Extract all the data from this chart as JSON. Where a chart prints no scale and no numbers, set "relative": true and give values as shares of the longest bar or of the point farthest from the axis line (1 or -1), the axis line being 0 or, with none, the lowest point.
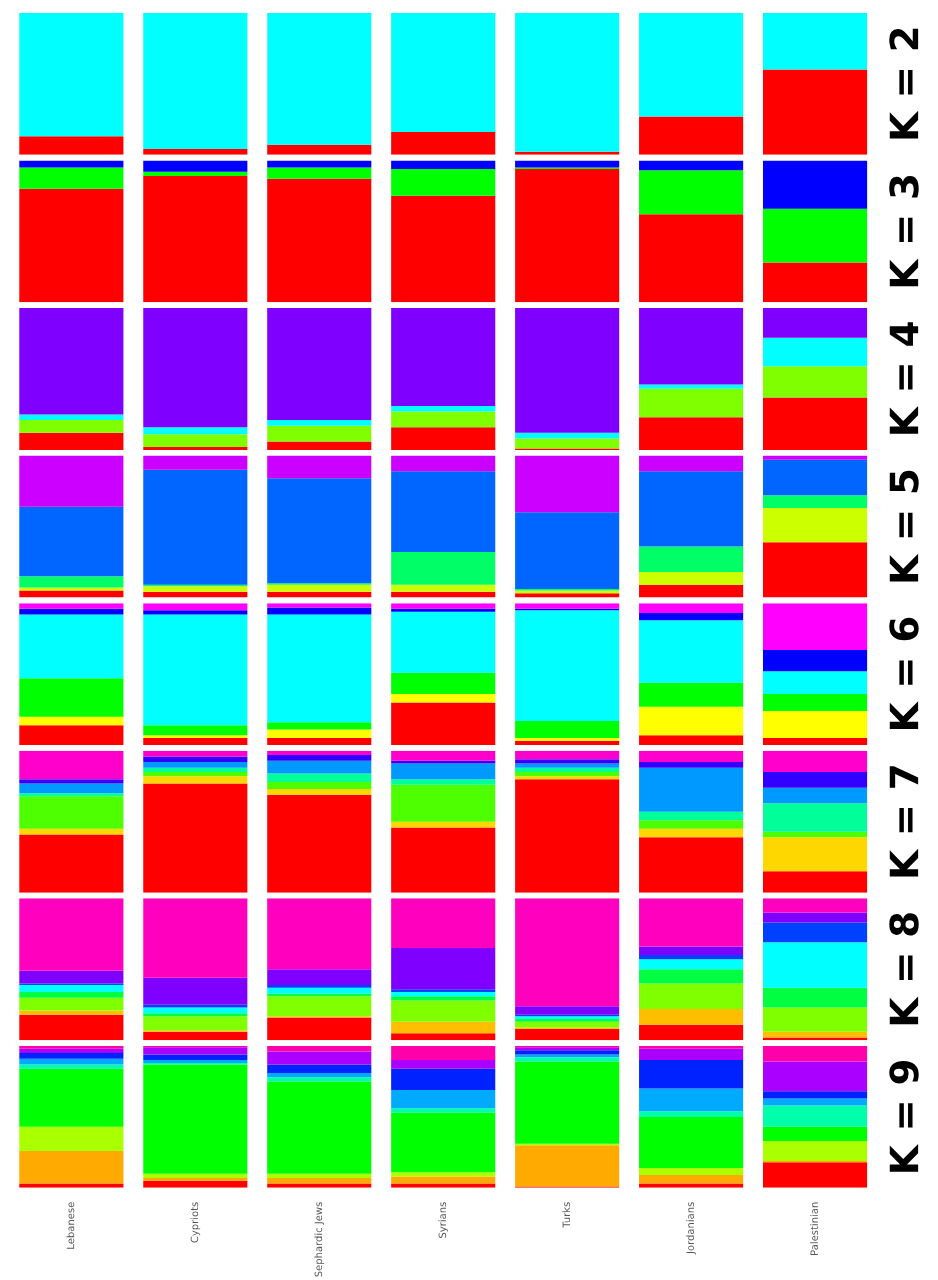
{
  "chart_data": [
    {
      "type": "bar",
      "title": "K = 2",
      "stacked": true,
      "relative": true,
      "tick_labels": false,
      "categories": [
        null,
        null,
        null,
        null,
        null,
        null,
        null
      ],
      "series": [
        {
          "color": "#ff0000",
          "values": [
            0.13,
            0.04,
            0.07,
            0.16,
            0.02,
            0.27,
            0.6
          ]
        },
        {
          "color": "#00ffff",
          "values": [
            0.87,
            0.96,
            0.93,
            0.84,
            0.98,
            0.73,
            0.4
          ]
        }
      ]
    },
    {
      "type": "bar",
      "title": "K = 3",
      "stacked": true,
      "relative": true,
      "tick_labels": false,
      "categories": [
        null,
        null,
        null,
        null,
        null,
        null,
        null
      ],
      "series": [
        {
          "color": "#ff0000",
          "values": [
            0.8,
            0.89,
            0.87,
            0.75,
            0.94,
            0.62,
            0.28
          ]
        },
        {
          "color": "#00ff00",
          "values": [
            0.15,
            0.03,
            0.08,
            0.19,
            0.01,
            0.31,
            0.38
          ]
        },
        {
          "color": "#0000ff",
          "values": [
            0.05,
            0.08,
            0.05,
            0.06,
            0.05,
            0.07,
            0.34
          ]
        }
      ]
    },
    {
      "type": "bar",
      "title": "K = 4",
      "stacked": true,
      "relative": true,
      "tick_labels": false,
      "categories": [
        null,
        null,
        null,
        null,
        null,
        null,
        null
      ],
      "series": [
        {
          "color": "#ff0000",
          "values": [
            0.12,
            0.02,
            0.06,
            0.16,
            0.01,
            0.23,
            0.37
          ]
        },
        {
          "color": "#80ff00",
          "values": [
            0.09,
            0.09,
            0.11,
            0.11,
            0.07,
            0.2,
            0.22
          ]
        },
        {
          "color": "#00ffff",
          "values": [
            0.04,
            0.05,
            0.04,
            0.04,
            0.04,
            0.03,
            0.2
          ]
        },
        {
          "color": "#8000ff",
          "values": [
            0.75,
            0.84,
            0.79,
            0.69,
            0.88,
            0.54,
            0.21
          ]
        }
      ]
    },
    {
      "type": "bar",
      "title": "K = 5",
      "stacked": true,
      "relative": true,
      "tick_labels": false,
      "categories": [
        null,
        null,
        null,
        null,
        null,
        null,
        null
      ],
      "series": [
        {
          "color": "#ff0000",
          "values": [
            0.05,
            0.04,
            0.04,
            0.04,
            0.03,
            0.09,
            0.39
          ]
        },
        {
          "color": "#ccff00",
          "values": [
            0.02,
            0.04,
            0.05,
            0.05,
            0.02,
            0.09,
            0.24
          ]
        },
        {
          "color": "#00ff66",
          "values": [
            0.08,
            0.01,
            0.01,
            0.23,
            0.01,
            0.18,
            0.09
          ]
        },
        {
          "color": "#0066ff",
          "values": [
            0.49,
            0.81,
            0.74,
            0.57,
            0.54,
            0.53,
            0.25
          ]
        },
        {
          "color": "#cc00ff",
          "values": [
            0.36,
            0.1,
            0.16,
            0.11,
            0.4,
            0.11,
            0.03
          ]
        }
      ]
    },
    {
      "type": "bar",
      "title": "K = 6",
      "stacked": true,
      "relative": true,
      "tick_labels": false,
      "categories": [
        null,
        null,
        null,
        null,
        null,
        null,
        null
      ],
      "series": [
        {
          "color": "#ff0000",
          "values": [
            0.14,
            0.05,
            0.05,
            0.3,
            0.03,
            0.07,
            0.05
          ]
        },
        {
          "color": "#ffff00",
          "values": [
            0.06,
            0.02,
            0.06,
            0.06,
            0.02,
            0.2,
            0.19
          ]
        },
        {
          "color": "#00ff00",
          "values": [
            0.27,
            0.07,
            0.05,
            0.15,
            0.12,
            0.17,
            0.12
          ]
        },
        {
          "color": "#00ffff",
          "values": [
            0.45,
            0.78,
            0.76,
            0.43,
            0.78,
            0.44,
            0.16
          ]
        },
        {
          "color": "#0000ff",
          "values": [
            0.04,
            0.03,
            0.05,
            0.02,
            0.01,
            0.05,
            0.15
          ]
        },
        {
          "color": "#ff00ff",
          "values": [
            0.04,
            0.05,
            0.03,
            0.04,
            0.04,
            0.07,
            0.33
          ]
        }
      ]
    },
    {
      "type": "bar",
      "title": "K = 7",
      "stacked": true,
      "relative": true,
      "tick_labels": false,
      "categories": [
        null,
        null,
        null,
        null,
        null,
        null,
        null
      ],
      "series": [
        {
          "color": "#ff0000",
          "values": [
            0.41,
            0.77,
            0.69,
            0.46,
            0.8,
            0.39,
            0.15
          ]
        },
        {
          "color": "#ffd700",
          "values": [
            0.04,
            0.05,
            0.04,
            0.04,
            0.02,
            0.06,
            0.24
          ]
        },
        {
          "color": "#4dff00",
          "values": [
            0.23,
            0.03,
            0.05,
            0.26,
            0.03,
            0.06,
            0.04
          ]
        },
        {
          "color": "#00ff99",
          "values": [
            0.02,
            0.03,
            0.06,
            0.04,
            0.03,
            0.06,
            0.2
          ]
        },
        {
          "color": "#0099ff",
          "values": [
            0.07,
            0.04,
            0.09,
            0.11,
            0.03,
            0.31,
            0.11
          ]
        },
        {
          "color": "#3300ff",
          "values": [
            0.03,
            0.04,
            0.04,
            0.02,
            0.03,
            0.04,
            0.11
          ]
        },
        {
          "color": "#ff00cc",
          "values": [
            0.2,
            0.04,
            0.03,
            0.07,
            0.06,
            0.08,
            0.15
          ]
        }
      ]
    },
    {
      "type": "bar",
      "title": "K = 8",
      "stacked": true,
      "relative": true,
      "tick_labels": false,
      "categories": [
        null,
        null,
        null,
        null,
        null,
        null,
        null
      ],
      "series": [
        {
          "color": "#ff0000",
          "values": [
            0.18,
            0.06,
            0.16,
            0.05,
            0.08,
            0.11,
            0.02
          ]
        },
        {
          "color": "#ffbf00",
          "values": [
            0.03,
            0.01,
            0.01,
            0.08,
            0.01,
            0.11,
            0.04
          ]
        },
        {
          "color": "#80ff00",
          "values": [
            0.09,
            0.1,
            0.14,
            0.15,
            0.04,
            0.18,
            0.17
          ]
        },
        {
          "color": "#00ff40",
          "values": [
            0.04,
            0.02,
            0.02,
            0.03,
            0.02,
            0.1,
            0.14
          ]
        },
        {
          "color": "#00ffff",
          "values": [
            0.05,
            0.04,
            0.04,
            0.03,
            0.02,
            0.07,
            0.32
          ]
        },
        {
          "color": "#0040ff",
          "values": [
            0.01,
            0.02,
            0.02,
            0.02,
            0.01,
            0.03,
            0.14
          ]
        },
        {
          "color": "#8000ff",
          "values": [
            0.09,
            0.19,
            0.11,
            0.29,
            0.06,
            0.06,
            0.07
          ]
        },
        {
          "color": "#ff00bf",
          "values": [
            0.51,
            0.56,
            0.5,
            0.35,
            0.76,
            0.34,
            0.1
          ]
        }
      ]
    },
    {
      "type": "bar",
      "title": "K = 9",
      "stacked": true,
      "relative": true,
      "tick_labels": "x",
      "categories": [
        "Lebanese",
        "Cypriots",
        "Sephardic Jews",
        "Syrians",
        "Turks",
        "Jordanians",
        "Palestinian"
      ],
      "series": [
        {
          "color": "#ff0000",
          "values": [
            0.03,
            0.05,
            0.03,
            0.03,
            0.01,
            0.03,
            0.18
          ]
        },
        {
          "color": "#ffaa00",
          "values": [
            0.23,
            0.02,
            0.04,
            0.05,
            0.29,
            0.06,
            0.01
          ]
        },
        {
          "color": "#aaff00",
          "values": [
            0.17,
            0.03,
            0.03,
            0.03,
            0.01,
            0.05,
            0.14
          ]
        },
        {
          "color": "#00ff00",
          "values": [
            0.41,
            0.77,
            0.65,
            0.42,
            0.58,
            0.36,
            0.1
          ]
        },
        {
          "color": "#00ffaa",
          "values": [
            0.03,
            0.01,
            0.03,
            0.03,
            0.03,
            0.04,
            0.15
          ]
        },
        {
          "color": "#00aaff",
          "values": [
            0.04,
            0.02,
            0.03,
            0.13,
            0.02,
            0.16,
            0.05
          ]
        },
        {
          "color": "#0022ff",
          "values": [
            0.04,
            0.04,
            0.06,
            0.15,
            0.03,
            0.2,
            0.05
          ]
        },
        {
          "color": "#aa00ff",
          "values": [
            0.03,
            0.05,
            0.09,
            0.06,
            0.02,
            0.08,
            0.21
          ]
        },
        {
          "color": "#ff00aa",
          "values": [
            0.02,
            0.01,
            0.04,
            0.1,
            0.01,
            0.02,
            0.11
          ]
        }
      ]
    }
  ]
}
